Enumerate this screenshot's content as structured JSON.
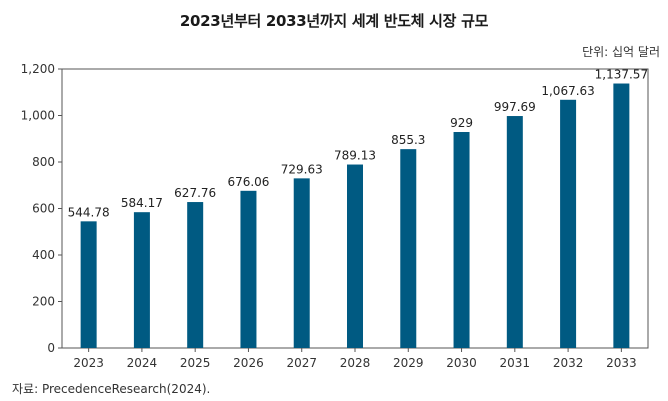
{
  "chart_data": {
    "type": "bar",
    "title": "2023년부터 2033년까지 세계 반도체 시장 규모",
    "unit_label": "단위: 십억 달러",
    "source": "자료: PrecedenceResearch(2024).",
    "categories": [
      "2023",
      "2024",
      "2025",
      "2026",
      "2027",
      "2028",
      "2029",
      "2030",
      "2031",
      "2032",
      "2033"
    ],
    "values": [
      544.78,
      584.17,
      627.76,
      676.06,
      729.63,
      789.13,
      855.3,
      929,
      997.69,
      1067.63,
      1137.57
    ],
    "value_labels": [
      "544.78",
      "584.17",
      "627.76",
      "676.06",
      "729.63",
      "789.13",
      "855.3",
      "929",
      "997.69",
      "1,067.63",
      "1,137.57"
    ],
    "yticks": [
      0,
      200,
      400,
      600,
      800,
      1000,
      1200
    ],
    "ytick_labels": [
      "0",
      "200",
      "400",
      "600",
      "800",
      "1,000",
      "1,200"
    ],
    "ylim": [
      0,
      1200
    ],
    "bar_color": "#005a82",
    "grid": false
  }
}
